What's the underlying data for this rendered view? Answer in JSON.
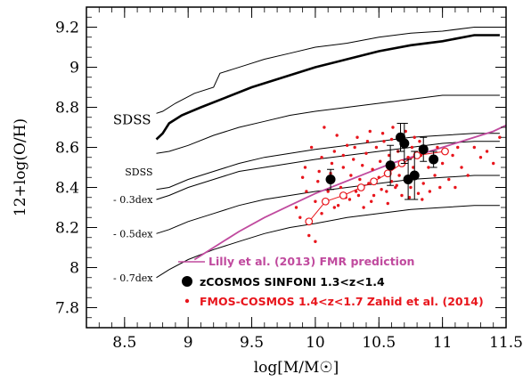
{
  "chart_data": {
    "type": "scatter",
    "title": "",
    "xlabel": "log[M/M☉]",
    "ylabel": "12+log(O/H)",
    "xlim": [
      8.2,
      11.5
    ],
    "ylim": [
      7.7,
      9.3
    ],
    "x_ticks": [
      "8.5",
      "9",
      "9.5",
      "10",
      "10.5",
      "11",
      "11.5"
    ],
    "y_ticks": [
      "7.8",
      "8",
      "8.2",
      "8.4",
      "8.6",
      "8.8",
      "9",
      "9.2"
    ],
    "grid": false,
    "legend_position": "bottom-right",
    "annotations": {
      "sdss_top": "SDSS",
      "sdss_low": "SDSS",
      "dex03": "- 0.3dex",
      "dex05": "- 0.5dex",
      "dex07": "- 0.7dex"
    },
    "legend": [
      {
        "label": "Lilly et al. (2013) FMR prediction",
        "color": "#c04a9e",
        "marker": "line"
      },
      {
        "label": "zCOSMOS SINFONI 1.3<z<1.4",
        "color": "#000000",
        "marker": "circle"
      },
      {
        "label": "FMOS-COSMOS 1.4<z<1.7 Zahid et al. (2014)",
        "color": "#e8151c",
        "marker": "small-dot"
      }
    ],
    "series": [
      {
        "label_ref": "sdss_top",
        "kind": "thick",
        "points": [
          [
            8.75,
            8.64
          ],
          [
            8.8,
            8.67
          ],
          [
            8.85,
            8.72
          ],
          [
            8.95,
            8.76
          ],
          [
            9.1,
            8.8
          ],
          [
            9.3,
            8.85
          ],
          [
            9.5,
            8.9
          ],
          [
            9.75,
            8.95
          ],
          [
            10.0,
            9.0
          ],
          [
            10.25,
            9.04
          ],
          [
            10.5,
            9.08
          ],
          [
            10.75,
            9.11
          ],
          [
            11.0,
            9.13
          ],
          [
            11.25,
            9.16
          ],
          [
            11.45,
            9.16
          ]
        ]
      },
      {
        "kind": "thin",
        "points": [
          [
            8.75,
            8.77
          ],
          [
            8.8,
            8.78
          ],
          [
            8.9,
            8.82
          ],
          [
            9.05,
            8.87
          ],
          [
            9.2,
            8.9
          ],
          [
            9.25,
            8.97
          ],
          [
            9.35,
            8.99
          ],
          [
            9.45,
            9.01
          ],
          [
            9.6,
            9.04
          ],
          [
            9.8,
            9.07
          ],
          [
            10.0,
            9.1
          ],
          [
            10.25,
            9.12
          ],
          [
            10.5,
            9.15
          ],
          [
            10.75,
            9.17
          ],
          [
            11.0,
            9.18
          ],
          [
            11.25,
            9.2
          ],
          [
            11.45,
            9.2
          ]
        ]
      },
      {
        "kind": "thin",
        "points": [
          [
            8.75,
            8.57
          ],
          [
            8.85,
            8.58
          ],
          [
            9.0,
            8.61
          ],
          [
            9.2,
            8.66
          ],
          [
            9.4,
            8.7
          ],
          [
            9.6,
            8.73
          ],
          [
            9.8,
            8.76
          ],
          [
            10.0,
            8.78
          ],
          [
            10.25,
            8.8
          ],
          [
            10.5,
            8.82
          ],
          [
            10.75,
            8.84
          ],
          [
            11.0,
            8.86
          ],
          [
            11.25,
            8.86
          ],
          [
            11.45,
            8.86
          ]
        ]
      },
      {
        "label_ref": "sdss_low",
        "kind": "thin",
        "points": [
          [
            8.75,
            8.39
          ],
          [
            8.85,
            8.4
          ],
          [
            9.0,
            8.44
          ],
          [
            9.2,
            8.48
          ],
          [
            9.4,
            8.52
          ],
          [
            9.6,
            8.55
          ],
          [
            9.8,
            8.57
          ],
          [
            10.0,
            8.59
          ],
          [
            10.25,
            8.61
          ],
          [
            10.5,
            8.63
          ],
          [
            10.75,
            8.65
          ],
          [
            11.0,
            8.66
          ],
          [
            11.25,
            8.67
          ],
          [
            11.45,
            8.67
          ]
        ]
      },
      {
        "label_ref": "dex03",
        "kind": "thin",
        "points": [
          [
            8.75,
            8.34
          ],
          [
            8.85,
            8.36
          ],
          [
            9.0,
            8.4
          ],
          [
            9.2,
            8.44
          ],
          [
            9.4,
            8.48
          ],
          [
            9.6,
            8.5
          ],
          [
            9.8,
            8.52
          ],
          [
            10.0,
            8.54
          ],
          [
            10.25,
            8.56
          ],
          [
            10.5,
            8.58
          ],
          [
            10.75,
            8.6
          ],
          [
            11.0,
            8.62
          ],
          [
            11.25,
            8.63
          ],
          [
            11.45,
            8.63
          ]
        ]
      },
      {
        "label_ref": "dex05",
        "kind": "thin",
        "points": [
          [
            8.75,
            8.17
          ],
          [
            8.85,
            8.19
          ],
          [
            9.0,
            8.23
          ],
          [
            9.2,
            8.27
          ],
          [
            9.4,
            8.31
          ],
          [
            9.6,
            8.34
          ],
          [
            9.8,
            8.36
          ],
          [
            10.0,
            8.38
          ],
          [
            10.25,
            8.4
          ],
          [
            10.5,
            8.42
          ],
          [
            10.75,
            8.44
          ],
          [
            11.0,
            8.45
          ],
          [
            11.25,
            8.46
          ],
          [
            11.45,
            8.46
          ]
        ]
      },
      {
        "label_ref": "dex07",
        "kind": "thin",
        "points": [
          [
            8.75,
            7.95
          ],
          [
            8.85,
            7.99
          ],
          [
            9.0,
            8.04
          ],
          [
            9.2,
            8.09
          ],
          [
            9.4,
            8.13
          ],
          [
            9.6,
            8.17
          ],
          [
            9.8,
            8.2
          ],
          [
            10.0,
            8.22
          ],
          [
            10.25,
            8.25
          ],
          [
            10.5,
            8.27
          ],
          [
            10.75,
            8.29
          ],
          [
            11.0,
            8.3
          ],
          [
            11.25,
            8.31
          ],
          [
            11.45,
            8.31
          ]
        ]
      }
    ],
    "fmr_prediction": {
      "color": "#c04a9e",
      "points": [
        [
          9.05,
          8.04
        ],
        [
          9.2,
          8.1
        ],
        [
          9.4,
          8.18
        ],
        [
          9.6,
          8.25
        ],
        [
          9.8,
          8.31
        ],
        [
          10.0,
          8.37
        ],
        [
          10.2,
          8.42
        ],
        [
          10.4,
          8.47
        ],
        [
          10.6,
          8.52
        ],
        [
          10.8,
          8.56
        ],
        [
          11.0,
          8.6
        ],
        [
          11.2,
          8.64
        ],
        [
          11.4,
          8.68
        ],
        [
          11.5,
          8.71
        ]
      ]
    },
    "zcosmos_sinfoni": [
      {
        "x": 10.12,
        "y": 8.44,
        "err": 0.05
      },
      {
        "x": 10.59,
        "y": 8.51,
        "err": 0.1
      },
      {
        "x": 10.67,
        "y": 8.65,
        "err": 0.07
      },
      {
        "x": 10.7,
        "y": 8.62,
        "err": 0.1
      },
      {
        "x": 10.73,
        "y": 8.44,
        "err": 0.1
      },
      {
        "x": 10.78,
        "y": 8.46,
        "err": 0.12
      },
      {
        "x": 10.85,
        "y": 8.59,
        "err": 0.06
      },
      {
        "x": 10.93,
        "y": 8.54,
        "err": 0.04
      }
    ],
    "fmos_stack": [
      {
        "x": 9.95,
        "y": 8.23
      },
      {
        "x": 10.08,
        "y": 8.33
      },
      {
        "x": 10.22,
        "y": 8.36
      },
      {
        "x": 10.36,
        "y": 8.4
      },
      {
        "x": 10.46,
        "y": 8.43
      },
      {
        "x": 10.57,
        "y": 8.47
      },
      {
        "x": 10.68,
        "y": 8.52
      },
      {
        "x": 10.8,
        "y": 8.56
      },
      {
        "x": 11.02,
        "y": 8.58
      }
    ],
    "fmos_individual": [
      [
        9.85,
        8.3
      ],
      [
        9.9,
        8.45
      ],
      [
        9.92,
        8.5
      ],
      [
        9.95,
        8.16
      ],
      [
        9.97,
        8.6
      ],
      [
        10.0,
        8.13
      ],
      [
        10.0,
        8.33
      ],
      [
        10.02,
        8.43
      ],
      [
        10.05,
        8.55
      ],
      [
        10.07,
        8.7
      ],
      [
        10.1,
        8.38
      ],
      [
        10.12,
        8.47
      ],
      [
        10.15,
        8.3
      ],
      [
        10.15,
        8.58
      ],
      [
        10.17,
        8.66
      ],
      [
        10.2,
        8.4
      ],
      [
        10.22,
        8.5
      ],
      [
        10.24,
        8.35
      ],
      [
        10.25,
        8.61
      ],
      [
        10.28,
        8.46
      ],
      [
        10.3,
        8.54
      ],
      [
        10.32,
        8.38
      ],
      [
        10.33,
        8.65
      ],
      [
        10.35,
        8.44
      ],
      [
        10.37,
        8.51
      ],
      [
        10.38,
        8.3
      ],
      [
        10.4,
        8.57
      ],
      [
        10.42,
        8.42
      ],
      [
        10.43,
        8.68
      ],
      [
        10.45,
        8.49
      ],
      [
        10.46,
        8.36
      ],
      [
        10.48,
        8.6
      ],
      [
        10.5,
        8.45
      ],
      [
        10.51,
        8.53
      ],
      [
        10.52,
        8.39
      ],
      [
        10.54,
        8.63
      ],
      [
        10.55,
        8.47
      ],
      [
        10.57,
        8.32
      ],
      [
        10.58,
        8.56
      ],
      [
        10.6,
        8.43
      ],
      [
        10.61,
        8.7
      ],
      [
        10.62,
        8.5
      ],
      [
        10.63,
        8.4
      ],
      [
        10.65,
        8.58
      ],
      [
        10.66,
        8.46
      ],
      [
        10.68,
        8.36
      ],
      [
        10.69,
        8.62
      ],
      [
        10.7,
        8.52
      ],
      [
        10.72,
        8.44
      ],
      [
        10.73,
        8.55
      ],
      [
        10.75,
        8.4
      ],
      [
        10.76,
        8.6
      ],
      [
        10.77,
        8.5
      ],
      [
        10.78,
        8.65
      ],
      [
        10.8,
        8.46
      ],
      [
        10.81,
        8.37
      ],
      [
        10.83,
        8.56
      ],
      [
        10.85,
        8.42
      ],
      [
        10.87,
        8.6
      ],
      [
        10.89,
        8.5
      ],
      [
        10.9,
        8.38
      ],
      [
        10.92,
        8.55
      ],
      [
        10.94,
        8.46
      ],
      [
        10.96,
        8.6
      ],
      [
        10.98,
        8.4
      ],
      [
        11.0,
        8.52
      ],
      [
        11.05,
        8.44
      ],
      [
        11.08,
        8.56
      ],
      [
        11.1,
        8.4
      ],
      [
        11.12,
        8.6
      ],
      [
        11.15,
        8.5
      ],
      [
        11.2,
        8.46
      ],
      [
        11.25,
        8.6
      ],
      [
        11.3,
        8.55
      ],
      [
        11.35,
        8.58
      ],
      [
        11.4,
        8.52
      ],
      [
        11.45,
        8.65
      ],
      [
        9.88,
        8.25
      ],
      [
        10.05,
        8.27
      ],
      [
        10.18,
        8.31
      ],
      [
        10.27,
        8.34
      ],
      [
        10.34,
        8.36
      ],
      [
        10.44,
        8.33
      ],
      [
        10.56,
        8.38
      ],
      [
        10.64,
        8.41
      ],
      [
        10.74,
        8.35
      ],
      [
        10.84,
        8.34
      ],
      [
        9.93,
        8.38
      ],
      [
        10.03,
        8.48
      ],
      [
        10.13,
        8.52
      ],
      [
        10.22,
        8.56
      ],
      [
        10.31,
        8.6
      ],
      [
        10.41,
        8.63
      ],
      [
        10.53,
        8.67
      ],
      [
        10.6,
        8.64
      ],
      [
        10.71,
        8.68
      ],
      [
        10.82,
        8.63
      ]
    ]
  }
}
